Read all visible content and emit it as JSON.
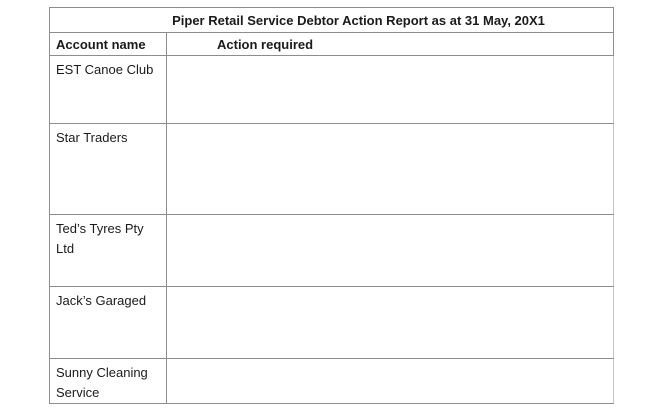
{
  "report": {
    "title": "Piper Retail Service Debtor Action Report as at 31 May, 20X1",
    "columns": [
      {
        "label": "Account name"
      },
      {
        "label": "Action required"
      }
    ],
    "rows": [
      {
        "account_name": "EST Canoe Club",
        "action_required": ""
      },
      {
        "account_name": "Star Traders",
        "action_required": ""
      },
      {
        "account_name": "Ted’s Tyres Pty Ltd",
        "action_required": ""
      },
      {
        "account_name": "Jack’s Garaged",
        "action_required": ""
      },
      {
        "account_name": "Sunny Cleaning Service",
        "action_required": ""
      }
    ],
    "colors": {
      "border": "#8d8d8d",
      "text": "#1b1b1b",
      "background": "#ffffff"
    }
  }
}
